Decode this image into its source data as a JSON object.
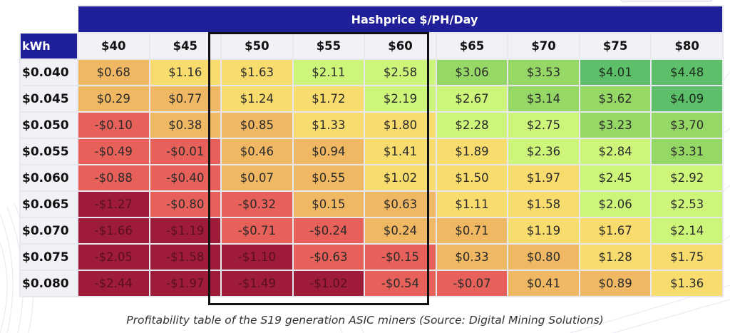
{
  "table": {
    "banner_title": "Hashprice $/PH/Day",
    "row_header_label": "kWh",
    "column_headers": [
      "$40",
      "$45",
      "$50",
      "$55",
      "$60",
      "$65",
      "$70",
      "$75",
      "$80"
    ],
    "highlighted_columns": [
      "$50",
      "$55",
      "$60"
    ],
    "rows": [
      {
        "kwh": "$0.040",
        "values": [
          "$0.68",
          "$1.16",
          "$1.63",
          "$2.11",
          "$2.58",
          "$3.06",
          "$3.53",
          "$4.01",
          "$4.48"
        ]
      },
      {
        "kwh": "$0.045",
        "values": [
          "$0.29",
          "$0.77",
          "$1.24",
          "$1.72",
          "$2.19",
          "$2.67",
          "$3.14",
          "$3.62",
          "$4.09"
        ]
      },
      {
        "kwh": "$0.050",
        "values": [
          "-$0.10",
          "$0.38",
          "$0.85",
          "$1.33",
          "$1.80",
          "$2.28",
          "$2.75",
          "$3.23",
          "$3,70"
        ]
      },
      {
        "kwh": "$0.055",
        "values": [
          "-$0.49",
          "-$0.01",
          "$0.46",
          "$0.94",
          "$1.41",
          "$1.89",
          "$2.36",
          "$2.84",
          "$3.31"
        ]
      },
      {
        "kwh": "$0.060",
        "values": [
          "-$0.88",
          "-$0.40",
          "$0.07",
          "$0.55",
          "$1.02",
          "$1.50",
          "$1.97",
          "$2.45",
          "$2.92"
        ]
      },
      {
        "kwh": "$0.065",
        "values": [
          "-$1.27",
          "-$0.80",
          "-$0.32",
          "$0.15",
          "$0.63",
          "$1.11",
          "$1.58",
          "$2.06",
          "$2.53"
        ]
      },
      {
        "kwh": "$0.070",
        "values": [
          "-$1.66",
          "-$1.19",
          "-$0.71",
          "-$0.24",
          "$0.24",
          "$0.71",
          "$1.19",
          "$1.67",
          "$2.14"
        ]
      },
      {
        "kwh": "$0.075",
        "values": [
          "-$2.05",
          "-$1.58",
          "-$1.10",
          "-$0.63",
          "-$0.15",
          "$0.33",
          "$0.80",
          "$1.28",
          "$1.75"
        ]
      },
      {
        "kwh": "$0.080",
        "values": [
          "-$2.44",
          "-$1.97",
          "-$1.49",
          "-$1.02",
          "-$0.54",
          "-$0.07",
          "$0.41",
          "$0.89",
          "$1.36"
        ]
      }
    ]
  },
  "color_scale": {
    "deep_red": "#9e1c3a",
    "red": "#e8605a",
    "orange": "#f0b862",
    "yellow": "#f8dc6e",
    "light_green": "#cdf57a",
    "green": "#95d865",
    "dark_green": "#5dbf6a",
    "header_blue": "#1f1f9a"
  },
  "caption": "Profitability table of the S19 generation ASIC miners (Source: Digital Mining Solutions)"
}
